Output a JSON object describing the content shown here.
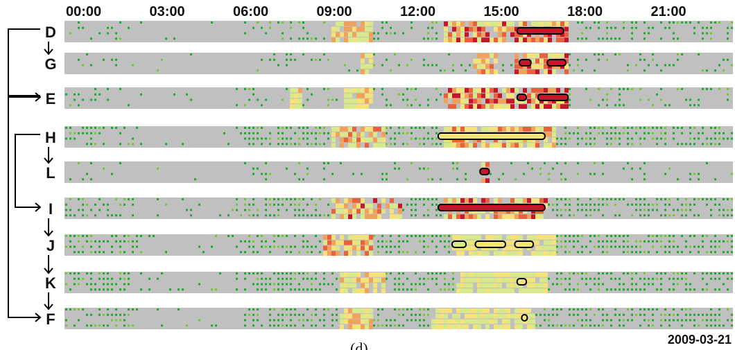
{
  "chart_data": {
    "type": "heatmap",
    "time_ticks": [
      "00:00",
      "03:00",
      "06:00",
      "09:00",
      "12:00",
      "15:00",
      "18:00",
      "21:00"
    ],
    "x_range_hours": [
      0,
      24
    ],
    "date": "2009-03-21",
    "caption": "(d)",
    "rows": [
      "D",
      "G",
      "E",
      "H",
      "L",
      "I",
      "J",
      "K",
      "F"
    ],
    "lanes_per_row": 4,
    "background_color": "#c0c0c0",
    "color_scale": [
      "#2e9e3a",
      "#7cc042",
      "#d7e98a",
      "#f6e27a",
      "#f3a15a",
      "#e8603c",
      "#c4182a"
    ],
    "flow_arrows": [
      {
        "from": "D",
        "to": "G"
      },
      {
        "from": "D",
        "to": "E"
      },
      {
        "from": "H",
        "to": "L"
      },
      {
        "from": "H",
        "to": "I"
      },
      {
        "from": "I",
        "to": "J"
      },
      {
        "from": "J",
        "to": "K"
      },
      {
        "from": "K",
        "to": "F"
      },
      {
        "from": "E",
        "to": "F"
      }
    ],
    "highlighted_intervals": [
      {
        "row": "D",
        "start": "16:15",
        "end": "17:55",
        "color": "#c4182a"
      },
      {
        "row": "G",
        "start": "16:20",
        "end": "16:45",
        "color": "#c4182a"
      },
      {
        "row": "G",
        "start": "17:20",
        "end": "18:00",
        "color": "#c4182a"
      },
      {
        "row": "E",
        "start": "16:15",
        "end": "16:35",
        "color": "#c4182a"
      },
      {
        "row": "E",
        "start": "17:00",
        "end": "18:05",
        "color": "#c4182a"
      },
      {
        "row": "H",
        "start": "13:25",
        "end": "17:15",
        "color": "#f6e27a"
      },
      {
        "row": "L",
        "start": "14:55",
        "end": "15:15",
        "color": "#c4182a"
      },
      {
        "row": "I",
        "start": "13:25",
        "end": "17:15",
        "color": "#c4182a"
      },
      {
        "row": "J",
        "start": "13:55",
        "end": "14:25",
        "color": "#d7e98a"
      },
      {
        "row": "J",
        "start": "14:45",
        "end": "15:50",
        "color": "#f6e27a"
      },
      {
        "row": "J",
        "start": "16:10",
        "end": "16:50",
        "color": "#f6e27a"
      },
      {
        "row": "K",
        "start": "16:15",
        "end": "16:35",
        "color": "#f6e27a"
      },
      {
        "row": "F",
        "start": "16:25",
        "end": "16:35",
        "color": "#f6e27a"
      }
    ],
    "activity_profiles": {
      "D": {
        "green": 0.5,
        "hot": [
          [
            9.5,
            11,
            0.6
          ],
          [
            13.5,
            18,
            1.0
          ]
        ]
      },
      "G": {
        "green": 0.25,
        "hot": [
          [
            10.5,
            11,
            0.6
          ],
          [
            14.5,
            15.5,
            0.7
          ],
          [
            16,
            18,
            1.0
          ]
        ]
      },
      "E": {
        "green": 0.45,
        "hot": [
          [
            8,
            8.5,
            0.5
          ],
          [
            10,
            11,
            0.5
          ],
          [
            13.5,
            18,
            1.0
          ]
        ]
      },
      "H": {
        "green": 0.95,
        "hot": [
          [
            9.5,
            11.5,
            0.7
          ],
          [
            13.5,
            17.5,
            0.8
          ]
        ]
      },
      "L": {
        "green": 0.25,
        "hot": [
          [
            14.8,
            15.2,
            1.0
          ]
        ]
      },
      "I": {
        "green": 0.95,
        "hot": [
          [
            9.5,
            12,
            0.9
          ],
          [
            13.5,
            17.2,
            1.0
          ]
        ]
      },
      "J": {
        "green": 0.95,
        "hot": [
          [
            9.2,
            11,
            0.8
          ],
          [
            13.8,
            17.5,
            0.4
          ]
        ]
      },
      "K": {
        "green": 0.95,
        "hot": [
          [
            9.8,
            11.5,
            0.5
          ],
          [
            14,
            17.3,
            0.3
          ]
        ]
      },
      "F": {
        "green": 0.95,
        "hot": [
          [
            9.8,
            11,
            0.5
          ],
          [
            13,
            16.8,
            0.4
          ]
        ]
      }
    }
  }
}
